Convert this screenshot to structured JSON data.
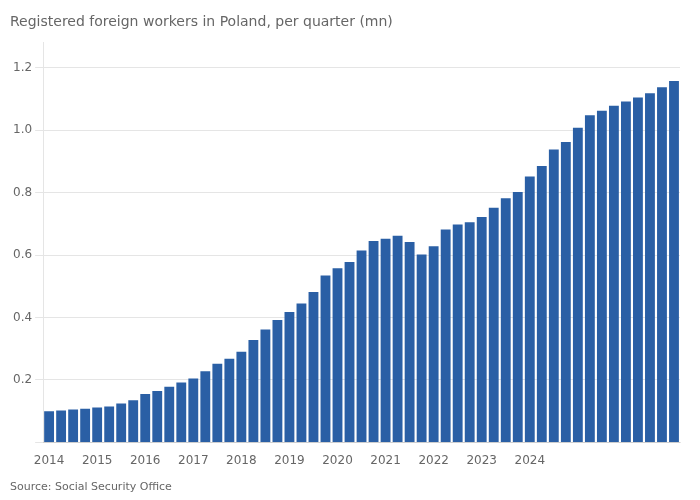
{
  "chart_data": {
    "type": "bar",
    "title": "Registered foreign workers in Poland, per quarter (mn)",
    "annotation": "Source: Social Security Office",
    "color": "#2a5fa5",
    "categories": [
      "2014",
      null,
      null,
      null,
      "2015",
      null,
      null,
      null,
      "2016",
      null,
      null,
      null,
      "2017",
      null,
      null,
      null,
      "2018",
      null,
      null,
      null,
      "2019",
      null,
      null,
      null,
      "2020",
      null,
      null,
      null,
      "2021",
      null,
      null,
      null,
      "2022",
      null,
      null,
      null,
      "2023",
      null,
      null,
      null,
      "2024",
      null,
      null,
      null,
      null,
      null,
      null,
      null,
      null,
      null,
      null,
      null,
      null
    ],
    "values": [
      0.1,
      0.102,
      0.105,
      0.108,
      0.112,
      0.115,
      0.125,
      0.135,
      0.155,
      0.165,
      0.178,
      0.192,
      0.205,
      0.228,
      0.252,
      0.268,
      0.29,
      0.328,
      0.362,
      0.392,
      0.418,
      0.445,
      0.482,
      0.535,
      0.558,
      0.578,
      0.615,
      0.645,
      0.652,
      0.662,
      0.642,
      0.602,
      0.628,
      0.682,
      0.698,
      0.705,
      0.722,
      0.752,
      0.782,
      0.802,
      0.852,
      0.885,
      0.938,
      0.962,
      1.008,
      1.048,
      1.062,
      1.078,
      1.092,
      1.105,
      1.118,
      1.138,
      1.158
    ],
    "ylim": [
      0,
      1.28
    ],
    "yticks": [
      {
        "value": 0,
        "label": ""
      },
      0.2,
      0.4,
      0.6,
      0.8,
      {
        "value": 1.0,
        "label": "1.0"
      },
      1.2
    ],
    "grid": true
  }
}
